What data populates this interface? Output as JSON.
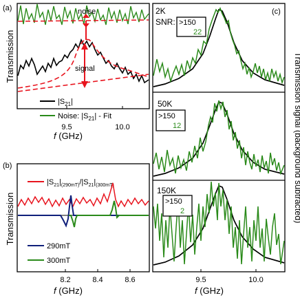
{
  "figure": {
    "panel_a": {
      "label": "(a)",
      "ylabel": "Transmission",
      "xlabel_italic": "f",
      "xlabel_rest": " (GHz)",
      "annotation_noise": "noise",
      "annotation_signal": "signal",
      "xticks": [
        "9.5",
        "10.0"
      ],
      "legend": {
        "s21_pre": "|S",
        "s21_sub": "21",
        "s21_post": "|",
        "noise_pre": "Noise: |S",
        "noise_sub": "21",
        "noise_post": "| - Fit"
      }
    },
    "panel_b": {
      "label": "(b)",
      "ylabel": "Transmission",
      "xlabel_italic": "f",
      "xlabel_rest": " (GHz)",
      "xticks": [
        "8.2",
        "8.4",
        "8.6"
      ],
      "legend": {
        "ratio_a": "|S",
        "ratio_sub1": "21",
        "ratio_b": "|",
        "ratio_sub2": "(290mT)",
        "ratio_c": "/|S",
        "ratio_sub3": "21",
        "ratio_d": "|",
        "ratio_sub4": "(300mT)",
        "s290": "290mT",
        "s300": "300mT"
      }
    },
    "panel_c": {
      "label": "(c)",
      "ylabel": "Transmission signal (background subtracted)",
      "xlabel_italic": "f",
      "xlabel_rest": " (GHz)",
      "xticks": [
        "9.5",
        "10.0"
      ],
      "sub1": {
        "temp": "2K",
        "snr_label": "SNR:",
        "snr_top": ">150",
        "snr_bottom": "22"
      },
      "sub2": {
        "temp": "50K",
        "snr_top": ">150",
        "snr_bottom": "12"
      },
      "sub3": {
        "temp": "150K",
        "snr_top": ">150",
        "snr_bottom": "2"
      }
    }
  },
  "colors": {
    "black": "#000000",
    "green": "#2a8a1a",
    "red": "#e8141e",
    "navy": "#0f1f7a"
  },
  "chart_data": [
    {
      "type": "line",
      "panel": "(a)",
      "xlabel": "f (GHz)",
      "ylabel": "Transmission",
      "xlim": [
        9.1,
        10.2
      ],
      "series": [
        {
          "name": "|S21|",
          "color": "#000000",
          "x": [
            9.1,
            9.2,
            9.3,
            9.4,
            9.5,
            9.6,
            9.65,
            9.7,
            9.75,
            9.8,
            9.9,
            10.0,
            10.1,
            10.2
          ],
          "y": [
            0.15,
            0.25,
            0.3,
            0.38,
            0.45,
            0.62,
            0.72,
            0.78,
            0.7,
            0.6,
            0.48,
            0.36,
            0.32,
            0.3
          ]
        },
        {
          "name": "Noise: |S21| - Fit",
          "color": "#2a8a1a",
          "x": [
            9.1,
            9.3,
            9.5,
            9.7,
            9.9,
            10.1,
            10.2
          ],
          "y": [
            1.0,
            1.0,
            1.0,
            1.0,
            1.0,
            1.0,
            1.0
          ]
        }
      ]
    },
    {
      "type": "line",
      "panel": "(b)",
      "xlabel": "f (GHz)",
      "ylabel": "Transmission",
      "xlim": [
        8.05,
        8.7
      ],
      "series": [
        {
          "name": "|S21|(290mT)/|S21|(300mT)",
          "color": "#e8141e",
          "x": [
            8.05,
            8.1,
            8.15,
            8.2,
            8.25,
            8.3,
            8.35,
            8.4,
            8.45,
            8.5,
            8.52,
            8.55,
            8.6,
            8.65,
            8.7
          ],
          "y": [
            0.35,
            0.45,
            0.35,
            0.45,
            0.38,
            0.45,
            0.35,
            0.45,
            0.38,
            0.55,
            0.75,
            0.4,
            0.45,
            0.35,
            0.42
          ]
        },
        {
          "name": "290mT",
          "color": "#0f1f7a",
          "x": [
            8.2,
            8.23,
            8.24,
            8.25,
            8.26,
            8.3
          ],
          "y": [
            0.0,
            -0.25,
            -0.05,
            0.6,
            0.05,
            0.0
          ]
        },
        {
          "name": "300mT",
          "color": "#2a8a1a",
          "x": [
            8.2,
            8.23,
            8.25,
            8.5,
            8.52,
            8.54,
            8.6
          ],
          "y": [
            0.0,
            -0.3,
            0.0,
            0.0,
            0.35,
            -0.05,
            0.0
          ]
        }
      ]
    },
    {
      "type": "line",
      "panel": "(c)",
      "xlabel": "f (GHz)",
      "ylabel": "Transmission signal (background subtracted)",
      "xlim": [
        9.1,
        10.2
      ],
      "series": [
        {
          "name": "2K fit",
          "color": "#000000",
          "x": [
            9.1,
            9.3,
            9.5,
            9.6,
            9.68,
            9.75,
            9.85,
            10.0,
            10.2
          ],
          "y": [
            0.05,
            0.1,
            0.25,
            0.6,
            1.0,
            0.7,
            0.35,
            0.15,
            0.08
          ]
        },
        {
          "name": "50K fit",
          "color": "#000000",
          "x": [
            9.1,
            9.3,
            9.5,
            9.6,
            9.68,
            9.75,
            9.85,
            10.0,
            10.2
          ],
          "y": [
            0.05,
            0.1,
            0.25,
            0.6,
            1.0,
            0.7,
            0.35,
            0.15,
            0.08
          ]
        },
        {
          "name": "150K fit",
          "color": "#000000",
          "x": [
            9.1,
            9.3,
            9.5,
            9.6,
            9.68,
            9.75,
            9.85,
            10.0,
            10.2
          ],
          "y": [
            0.05,
            0.1,
            0.25,
            0.6,
            1.0,
            0.7,
            0.35,
            0.15,
            0.08
          ]
        }
      ]
    }
  ]
}
